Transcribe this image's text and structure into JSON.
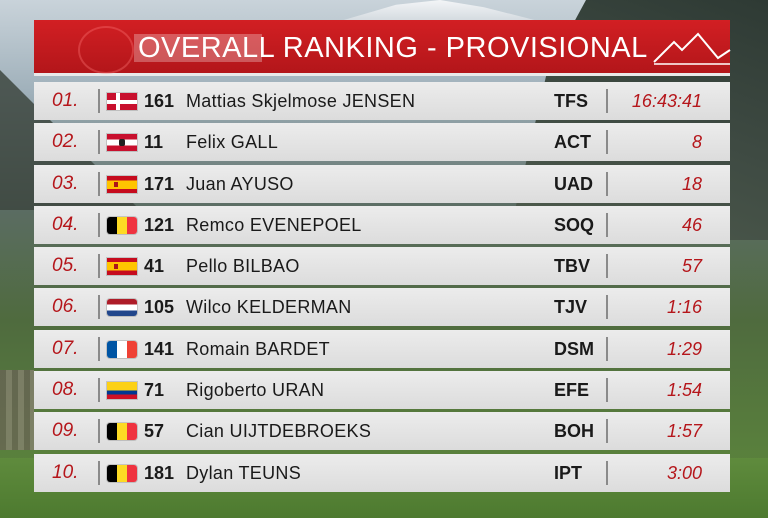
{
  "title": "OVERALL RANKING - PROVISIONAL",
  "colors": {
    "banner": "#c8191d",
    "position": "#b5161b",
    "row": "#e4e4e4"
  },
  "rows": [
    {
      "pos": "01.",
      "flag": "flag-den",
      "num": "161",
      "name": "Mattias Skjelmose JENSEN",
      "team": "TFS",
      "gap": "16:43:41"
    },
    {
      "pos": "02.",
      "flag": "flag-aut",
      "num": "11",
      "name": "Felix GALL",
      "team": "ACT",
      "gap": "8"
    },
    {
      "pos": "03.",
      "flag": "flag-esp",
      "num": "171",
      "name": "Juan AYUSO",
      "team": "UAD",
      "gap": "18"
    },
    {
      "pos": "04.",
      "flag": "flag-bel",
      "num": "121",
      "name": "Remco EVENEPOEL",
      "team": "SOQ",
      "gap": "46"
    },
    {
      "pos": "05.",
      "flag": "flag-esp",
      "num": "41",
      "name": "Pello BILBAO",
      "team": "TBV",
      "gap": "57"
    },
    {
      "pos": "06.",
      "flag": "flag-ned",
      "num": "105",
      "name": "Wilco KELDERMAN",
      "team": "TJV",
      "gap": "1:16"
    },
    {
      "pos": "07.",
      "flag": "flag-fra",
      "num": "141",
      "name": "Romain BARDET",
      "team": "DSM",
      "gap": "1:29"
    },
    {
      "pos": "08.",
      "flag": "flag-col",
      "num": "71",
      "name": "Rigoberto URAN",
      "team": "EFE",
      "gap": "1:54"
    },
    {
      "pos": "09.",
      "flag": "flag-bel",
      "num": "57",
      "name": "Cian UIJTDEBROEKS",
      "team": "BOH",
      "gap": "1:57"
    },
    {
      "pos": "10.",
      "flag": "flag-bel",
      "num": "181",
      "name": "Dylan TEUNS",
      "team": "IPT",
      "gap": "3:00"
    }
  ]
}
